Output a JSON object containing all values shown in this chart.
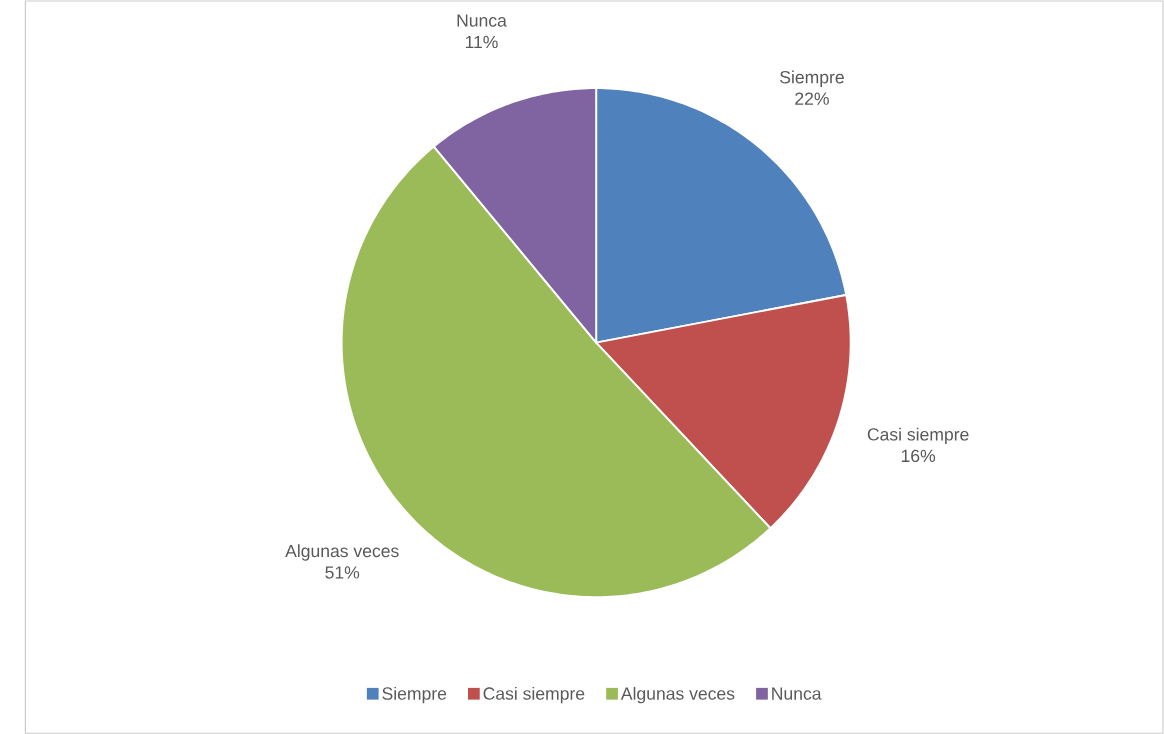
{
  "chart_data": {
    "type": "pie",
    "categories": [
      "Siempre",
      "Casi siempre",
      "Algunas veces",
      "Nunca"
    ],
    "values": [
      22,
      16,
      51,
      11
    ],
    "value_labels": [
      "22%",
      "16%",
      "51%",
      "11%"
    ],
    "colors": [
      "#4f81bd",
      "#c0504d",
      "#9bbb59",
      "#8064a2"
    ],
    "legend": "bottom"
  }
}
